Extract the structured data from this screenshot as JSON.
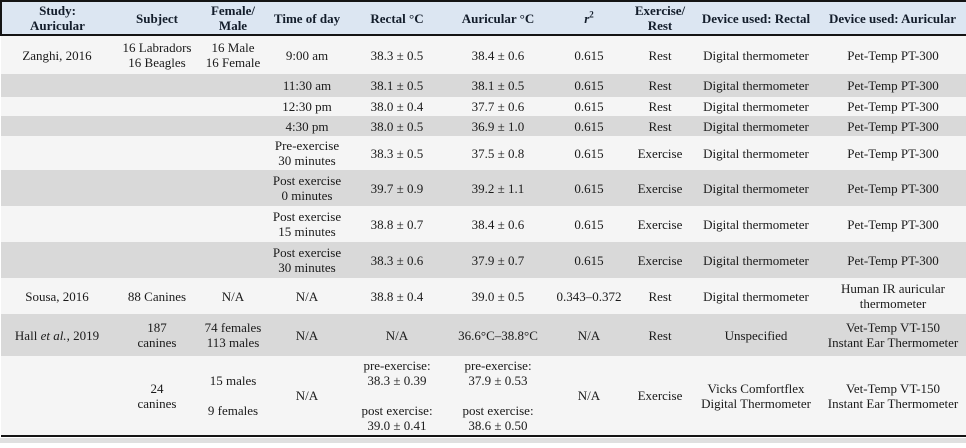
{
  "table": {
    "columns": [
      {
        "key": "study",
        "label": "Study:\nAuricular"
      },
      {
        "key": "subject",
        "label": "Subject"
      },
      {
        "key": "female_male",
        "label": "Female/\nMale"
      },
      {
        "key": "time_of_day",
        "label": "Time of day"
      },
      {
        "key": "rectal",
        "label": "Rectal °C"
      },
      {
        "key": "auricular",
        "label": "Auricular °C"
      },
      {
        "key": "r_squared",
        "label": "*r*^2^"
      },
      {
        "key": "exercise_rest",
        "label": "Exercise/\nRest"
      },
      {
        "key": "device_rectal",
        "label": "Device used: Rectal"
      },
      {
        "key": "device_auricular",
        "label": "Device used: Auricular"
      }
    ],
    "rows": [
      {
        "cells": [
          "Zanghi, 2016",
          "16 Labradors\n16 Beagles",
          "16 Male\n16 Female",
          "9:00 am",
          "38.3 ± 0.5",
          "38.4 ± 0.6",
          "0.615",
          "Rest",
          "Digital thermometer",
          "Pet-Temp PT-300"
        ]
      },
      {
        "cells": [
          "",
          "",
          "",
          "11:30 am",
          "38.1 ± 0.5",
          "38.1 ± 0.5",
          "0.615",
          "Rest",
          "Digital thermometer",
          "Pet-Temp PT-300"
        ]
      },
      {
        "cells": [
          "",
          "",
          "",
          "12:30 pm",
          "38.0 ± 0.4",
          "37.7 ± 0.6",
          "0.615",
          "Rest",
          "Digital thermometer",
          "Pet-Temp PT-300"
        ]
      },
      {
        "cells": [
          "",
          "",
          "",
          "4:30 pm",
          "38.0 ± 0.5",
          "36.9 ± 1.0",
          "0.615",
          "Rest",
          "Digital thermometer",
          "Pet-Temp PT-300"
        ]
      },
      {
        "cells": [
          "",
          "",
          "",
          "Pre-exercise\n30 minutes",
          "38.3 ± 0.5",
          "37.5 ± 0.8",
          "0.615",
          "Exercise",
          "Digital thermometer",
          "Pet-Temp PT-300"
        ]
      },
      {
        "cells": [
          "",
          "",
          "",
          "Post exercise\n0 minutes",
          "39.7 ± 0.9",
          "39.2 ± 1.1",
          "0.615",
          "Exercise",
          "Digital thermometer",
          "Pet-Temp PT-300"
        ]
      },
      {
        "cells": [
          "",
          "",
          "",
          "Post exercise\n15 minutes",
          "38.8 ± 0.7",
          "38.4 ± 0.6",
          "0.615",
          "Exercise",
          "Digital thermometer",
          "Pet-Temp PT-300"
        ]
      },
      {
        "cells": [
          "",
          "",
          "",
          "Post exercise\n30 minutes",
          "38.3 ± 0.6",
          "37.9 ± 0.7",
          "0.615",
          "Exercise",
          "Digital thermometer",
          "Pet-Temp PT-300"
        ]
      },
      {
        "cells": [
          "Sousa, 2016",
          "88 Canines",
          "N/A",
          "N/A",
          "38.8 ± 0.4",
          "39.0 ± 0.5",
          "0.343–0.372",
          "Rest",
          "Digital thermometer",
          "Human IR auricular\nthermometer"
        ]
      },
      {
        "cells": [
          "Hall *et al.*, 2019",
          "187\ncanines",
          "74 females\n113 males",
          "N/A",
          "N/A",
          "36.6°C–38.8°C",
          "N/A",
          "Rest",
          "Unspecified",
          "Vet-Temp VT-150\nInstant Ear Thermometer"
        ]
      },
      {
        "cells": [
          "",
          "24\ncanines",
          "15 males\n\n9 females",
          "N/A",
          "pre-exercise:\n38.3 ± 0.39\n\npost exercise:\n39.0 ± 0.41",
          "pre-exercise:\n37.9 ± 0.53\n\npost exercise:\n38.6 ± 0.50",
          "N/A",
          "Exercise",
          "Vicks Comfortflex\nDigital Thermometer",
          "Vet-Temp VT-150\nInstant Ear Thermometer"
        ]
      }
    ]
  },
  "colors": {
    "header_bg": "#dce6f2",
    "shaded_row_bg": "#d9d9d9",
    "plain_row_bg": "#f5f5f5",
    "rule": "#141414",
    "text": "#1a1a1a"
  }
}
